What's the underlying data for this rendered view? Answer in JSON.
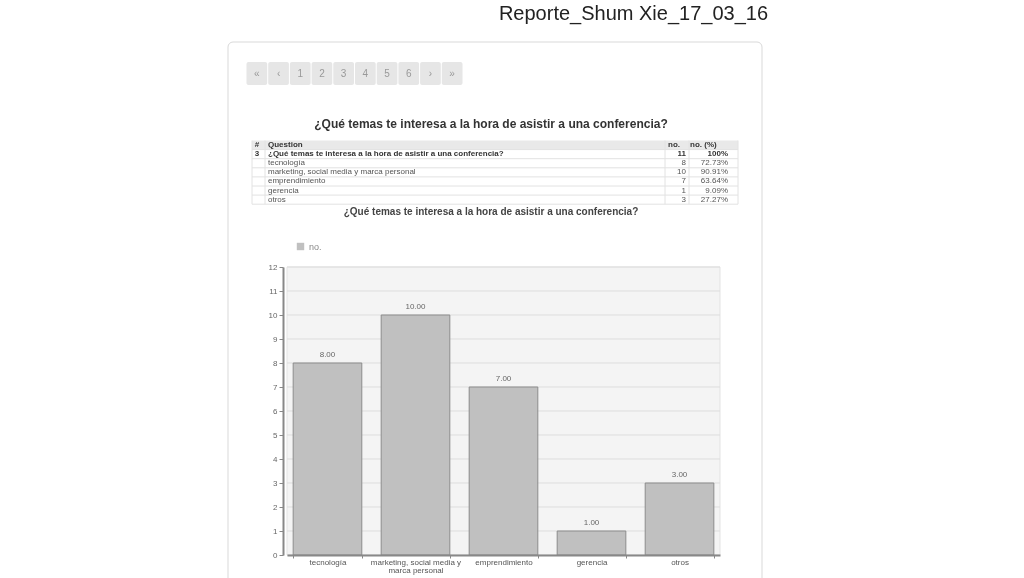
{
  "chart_data": {
    "type": "bar",
    "title": "Reporte_Shum Xie_17_03_16",
    "subtitle": "¿Qué temas te interesa a la hora de asistir a una conferencia?",
    "annotations": [
      "«",
      "‹",
      "1",
      "2",
      "3",
      "4",
      "5",
      "6",
      "›",
      "»",
      "#",
      "Question",
      "no.",
      "no. (%)",
      "3",
      "¿Qué temas te interesa a la hora de asistir a una conferencia?",
      "11",
      "100%",
      null,
      "tecnología",
      "8",
      "72.73%",
      null,
      "marketing, social media y marca personal",
      "10",
      "90.91%",
      null,
      "emprendimiento",
      "7",
      "63.64%",
      null,
      "gerencia",
      "1",
      "9.09%",
      null,
      "otros",
      "3",
      "27.27%",
      "¿Qué temas te interesa a la hora de asistir a una conferencia?"
    ],
    "categories": [
      "tecnología",
      "marketing, social media y marca personal",
      "emprendimiento",
      "gerencia",
      "otros"
    ],
    "series": [
      {
        "name": "no.",
        "color": "#c0c0c0",
        "values": [
          8,
          10,
          7,
          1,
          3
        ],
        "value_labels": [
          "8.00",
          "10.00",
          "7.00",
          "1.00",
          "3.00"
        ]
      }
    ],
    "ylim": [
      0,
      12
    ],
    "yticks": [
      0,
      1,
      2,
      3,
      4,
      5,
      6,
      7,
      8,
      9,
      10,
      11,
      12
    ],
    "grid": "y",
    "legend": "top left"
  }
}
